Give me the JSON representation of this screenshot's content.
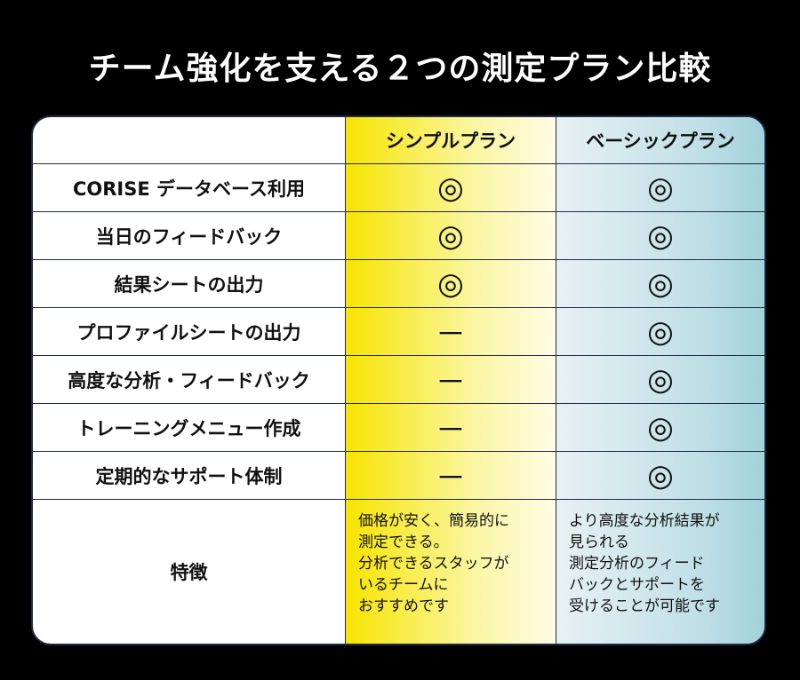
{
  "title": "チーム強化を支える２つの測定プラン比較",
  "table": {
    "header": [
      "シンプルプラン",
      "ベーシックプラン"
    ],
    "rows": [
      {
        "label": "CORISE データベース利用",
        "cells": [
          "◎",
          "◎"
        ]
      },
      {
        "label": "当日のフィードバック",
        "cells": [
          "◎",
          "◎"
        ]
      },
      {
        "label": "結果シートの出力",
        "cells": [
          "◎",
          "◎"
        ]
      },
      {
        "label": "プロファイルシートの出力",
        "cells": [
          "－",
          "◎"
        ]
      },
      {
        "label": "高度な分析・フィードバック",
        "cells": [
          "－",
          "◎"
        ]
      },
      {
        "label": "トレーニングメニュー作成",
        "cells": [
          "－",
          "◎"
        ]
      },
      {
        "label": "定期的なサポート体制",
        "cells": [
          "－",
          "◎"
        ]
      }
    ],
    "features": {
      "label": "特徴",
      "cells": [
        [
          "価格が安く、簡易的に",
          "測定できる。",
          "分析できるスタッフが",
          "いるチームに",
          "おすすめです"
        ],
        [
          "より高度な分析結果が",
          "見られる",
          "測定分析のフィード",
          "バックとサポートを",
          "受けることが可能です"
        ]
      ]
    }
  }
}
